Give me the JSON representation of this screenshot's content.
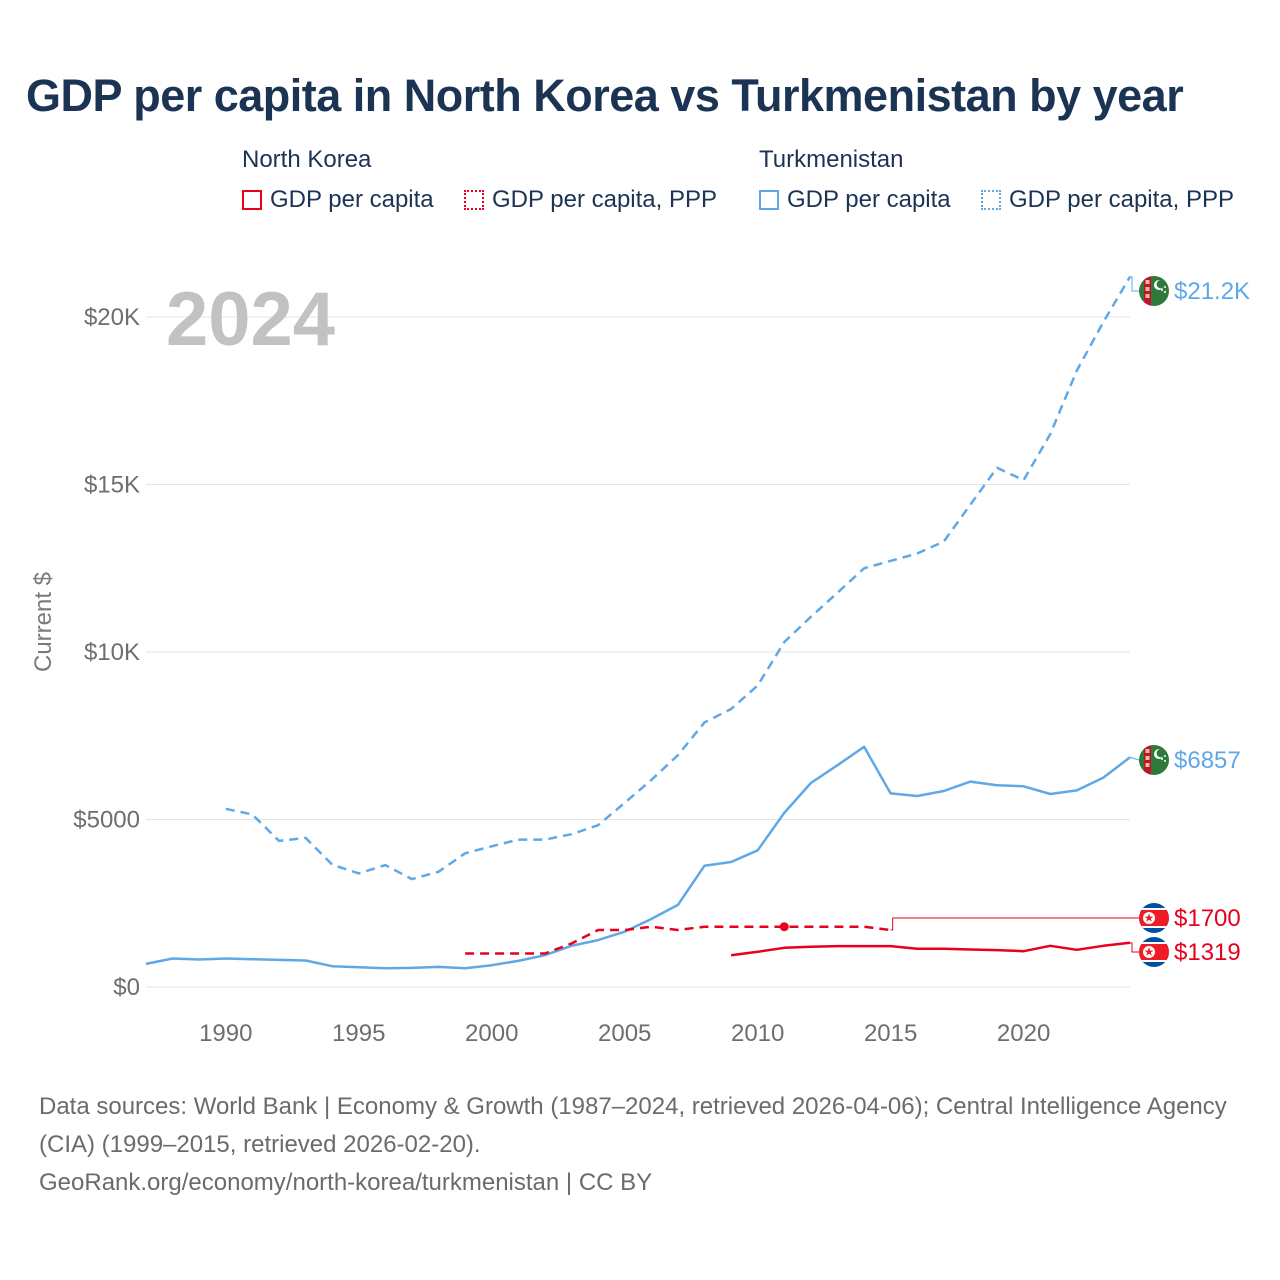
{
  "title": "GDP per capita in North Korea vs Turkmenistan by year",
  "legend": {
    "groups": [
      {
        "name": "North Korea",
        "items": [
          {
            "label": "GDP per capita",
            "style": "solid",
            "color": "#e8001c"
          },
          {
            "label": "GDP per capita, PPP",
            "style": "dotted",
            "color": "#e8001c"
          }
        ]
      },
      {
        "name": "Turkmenistan",
        "items": [
          {
            "label": "GDP per capita",
            "style": "solid",
            "color": "#5fa8e8"
          },
          {
            "label": "GDP per capita, PPP",
            "style": "dotted",
            "color": "#5fa8e8"
          }
        ]
      }
    ]
  },
  "chart_data": {
    "type": "line",
    "year_badge": "2024",
    "ylabel": "Current $",
    "xlim": [
      1987,
      2024
    ],
    "ylim": [
      0,
      22000
    ],
    "x_ticks": [
      1990,
      1995,
      2000,
      2005,
      2010,
      2015,
      2020
    ],
    "y_ticks": [
      {
        "value": 0,
        "label": "$0"
      },
      {
        "value": 5000,
        "label": "$5000"
      },
      {
        "value": 10000,
        "label": "$10K"
      },
      {
        "value": 15000,
        "label": "$15K"
      },
      {
        "value": 20000,
        "label": "$20K"
      }
    ],
    "series": [
      {
        "name": "Turkmenistan GDP per capita, PPP",
        "country": "Turkmenistan",
        "color": "#5fa8e8",
        "dash": true,
        "end_label": "$21.2K",
        "flag": "turkmenistan",
        "points": [
          [
            1990,
            5320
          ],
          [
            1991,
            5150
          ],
          [
            1992,
            4360
          ],
          [
            1993,
            4450
          ],
          [
            1994,
            3650
          ],
          [
            1995,
            3390
          ],
          [
            1996,
            3640
          ],
          [
            1997,
            3220
          ],
          [
            1998,
            3440
          ],
          [
            1999,
            3990
          ],
          [
            2000,
            4200
          ],
          [
            2001,
            4400
          ],
          [
            2002,
            4400
          ],
          [
            2003,
            4560
          ],
          [
            2004,
            4830
          ],
          [
            2005,
            5500
          ],
          [
            2006,
            6180
          ],
          [
            2007,
            6920
          ],
          [
            2008,
            7900
          ],
          [
            2009,
            8300
          ],
          [
            2010,
            9000
          ],
          [
            2011,
            10300
          ],
          [
            2012,
            11050
          ],
          [
            2013,
            11770
          ],
          [
            2014,
            12500
          ],
          [
            2015,
            12720
          ],
          [
            2016,
            12940
          ],
          [
            2017,
            13300
          ],
          [
            2018,
            14400
          ],
          [
            2019,
            15500
          ],
          [
            2020,
            15130
          ],
          [
            2021,
            16500
          ],
          [
            2022,
            18400
          ],
          [
            2023,
            19850
          ],
          [
            2024,
            21200
          ]
        ]
      },
      {
        "name": "Turkmenistan GDP per capita",
        "country": "Turkmenistan",
        "color": "#5fa8e8",
        "dash": false,
        "end_label": "$6857",
        "flag": "turkmenistan",
        "points": [
          [
            1987,
            690
          ],
          [
            1988,
            850
          ],
          [
            1989,
            820
          ],
          [
            1990,
            850
          ],
          [
            1991,
            830
          ],
          [
            1992,
            810
          ],
          [
            1993,
            790
          ],
          [
            1994,
            620
          ],
          [
            1995,
            590
          ],
          [
            1996,
            560
          ],
          [
            1997,
            570
          ],
          [
            1998,
            600
          ],
          [
            1999,
            560
          ],
          [
            2000,
            650
          ],
          [
            2001,
            780
          ],
          [
            2002,
            950
          ],
          [
            2003,
            1230
          ],
          [
            2004,
            1400
          ],
          [
            2005,
            1650
          ],
          [
            2006,
            2030
          ],
          [
            2007,
            2450
          ],
          [
            2008,
            3620
          ],
          [
            2009,
            3730
          ],
          [
            2010,
            4080
          ],
          [
            2011,
            5200
          ],
          [
            2012,
            6090
          ],
          [
            2013,
            6620
          ],
          [
            2014,
            7170
          ],
          [
            2015,
            5780
          ],
          [
            2016,
            5700
          ],
          [
            2017,
            5850
          ],
          [
            2018,
            6130
          ],
          [
            2019,
            6020
          ],
          [
            2020,
            5990
          ],
          [
            2021,
            5760
          ],
          [
            2022,
            5870
          ],
          [
            2023,
            6250
          ],
          [
            2024,
            6857
          ]
        ]
      },
      {
        "name": "North Korea GDP per capita, PPP",
        "country": "North Korea",
        "color": "#e8001c",
        "dash": true,
        "end_label": "$1700",
        "flag": "north-korea",
        "marker_year": 2011,
        "points": [
          [
            1999,
            1000
          ],
          [
            2000,
            1000
          ],
          [
            2001,
            1000
          ],
          [
            2002,
            1000
          ],
          [
            2003,
            1300
          ],
          [
            2004,
            1700
          ],
          [
            2005,
            1700
          ],
          [
            2006,
            1800
          ],
          [
            2007,
            1700
          ],
          [
            2008,
            1800
          ],
          [
            2009,
            1800
          ],
          [
            2010,
            1800
          ],
          [
            2011,
            1800
          ],
          [
            2012,
            1800
          ],
          [
            2013,
            1800
          ],
          [
            2014,
            1800
          ],
          [
            2015,
            1700
          ]
        ]
      },
      {
        "name": "North Korea GDP per capita",
        "country": "North Korea",
        "color": "#e8001c",
        "dash": false,
        "end_label": "$1319",
        "flag": "north-korea",
        "points": [
          [
            2009,
            950
          ],
          [
            2010,
            1050
          ],
          [
            2011,
            1170
          ],
          [
            2012,
            1200
          ],
          [
            2013,
            1220
          ],
          [
            2014,
            1220
          ],
          [
            2015,
            1220
          ],
          [
            2016,
            1140
          ],
          [
            2017,
            1140
          ],
          [
            2018,
            1120
          ],
          [
            2019,
            1100
          ],
          [
            2020,
            1070
          ],
          [
            2021,
            1230
          ],
          [
            2022,
            1110
          ],
          [
            2023,
            1230
          ],
          [
            2024,
            1319
          ]
        ]
      }
    ]
  },
  "footer": {
    "sources": "Data sources: World Bank | Economy & Growth (1987–2024, retrieved 2026-04-06); Central Intelligence Agency (CIA) (1999–2015, retrieved 2026-02-20).",
    "credit": "GeoRank.org/economy/north-korea/turkmenistan | CC BY"
  }
}
